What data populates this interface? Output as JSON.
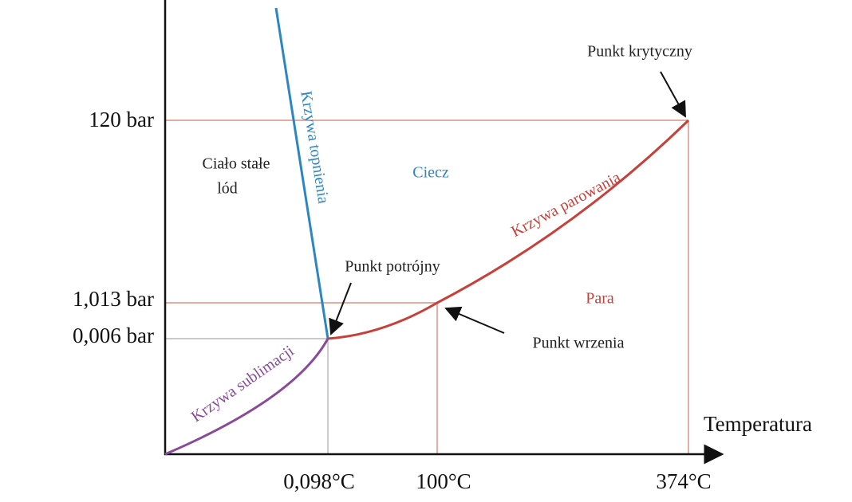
{
  "axes": {
    "x_label": "Temperatura",
    "x_ticks": [
      "0,098°C",
      "100°C",
      "374°C"
    ],
    "y_ticks": [
      "120 bar",
      "1,013 bar",
      "0,006 bar"
    ]
  },
  "regions": [
    "Ciało stałe",
    "lód",
    "Ciecz",
    "Para"
  ],
  "curves": [
    "Krzywa topnienia",
    "Krzywa sublimacji",
    "Krzywa parowania"
  ],
  "points": [
    "Punkt potrójny",
    "Punkt wrzenia",
    "Punkt krytyczny"
  ]
}
